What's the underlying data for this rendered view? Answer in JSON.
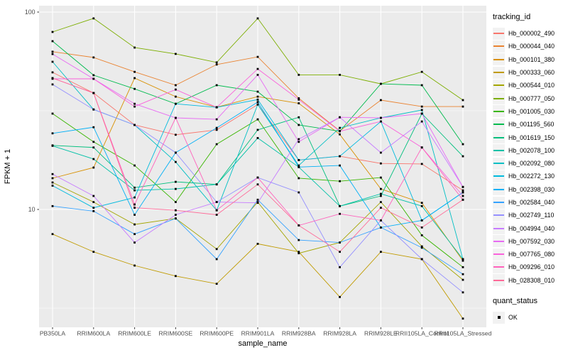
{
  "chart_data": {
    "type": "line",
    "title": "",
    "xlabel": "sample_name",
    "ylabel": "FPKM + 1",
    "y_scale": "log10",
    "y_ticks": [
      10,
      100
    ],
    "y_minor_breaks": [
      3.162,
      31.62
    ],
    "ylim": [
      2.53,
      107.7
    ],
    "grid": "ggplot-grey-panel-white-gridlines",
    "panel_color": "#EBEBEB",
    "point_marker": "small-black-square",
    "legend_position": "right",
    "categories": [
      "PB350LA",
      "RRIM600LA",
      "RRIM600LE",
      "RRIM600SE",
      "RRIM600PE",
      "RRIM901LA",
      "RRIM928BA",
      "RRIM928LA",
      "RRIM928LE",
      "RRII105LA_Control",
      "RRII105LA_Stressed"
    ],
    "legend_title": "tracking_id",
    "quant_legend_title": "quant_status",
    "quant_legend_items": [
      {
        "label": "OK"
      }
    ],
    "series": [
      {
        "name": "Hb_000002_490",
        "color": "#F8766D",
        "values": [
          49.5,
          38.9,
          26.8,
          23.9,
          25.3,
          34.0,
          17.8,
          18.6,
          17.1,
          17.0,
          12.5
        ]
      },
      {
        "name": "Hb_000044_040",
        "color": "#EA8331",
        "values": [
          63.0,
          58.9,
          49.8,
          42.6,
          54.2,
          59.3,
          36.6,
          25.0,
          35.8,
          33.2,
          33.2
        ]
      },
      {
        "name": "Hb_000101_380",
        "color": "#D89000",
        "values": [
          14.4,
          16.3,
          46.3,
          37.3,
          33.0,
          37.3,
          34.5,
          24.0,
          12.7,
          10.8,
          5.5
        ]
      },
      {
        "name": "Hb_000333_060",
        "color": "#C09B00",
        "values": [
          7.5,
          6.1,
          5.2,
          4.6,
          4.2,
          6.7,
          6.1,
          3.6,
          6.1,
          5.6,
          2.8
        ]
      },
      {
        "name": "Hb_000544_010",
        "color": "#A3A500",
        "values": [
          13.7,
          10.9,
          8.4,
          9.0,
          6.3,
          10.9,
          6.0,
          6.8,
          10.9,
          6.5,
          4.4
        ]
      },
      {
        "name": "Hb_000777_050",
        "color": "#7CAE00",
        "values": [
          79.3,
          92.9,
          66.1,
          61.4,
          55.6,
          92.9,
          48.1,
          48.1,
          43.3,
          49.8,
          35.8
        ]
      },
      {
        "name": "Hb_001005_030",
        "color": "#39B600",
        "values": [
          30.6,
          22.0,
          16.7,
          10.9,
          21.4,
          28.6,
          14.4,
          13.9,
          14.5,
          7.4,
          5.1
        ]
      },
      {
        "name": "Hb_001195_560",
        "color": "#00BB4E",
        "values": [
          71.2,
          47.9,
          40.8,
          34.3,
          42.6,
          39.5,
          26.8,
          24.9,
          43.3,
          42.6,
          21.4
        ]
      },
      {
        "name": "Hb_001619_150",
        "color": "#00BF7D",
        "values": [
          21.1,
          20.6,
          12.9,
          13.8,
          13.4,
          25.3,
          29.3,
          10.4,
          11.7,
          30.6,
          18.6
        ]
      },
      {
        "name": "Hb_002078_100",
        "color": "#00C1A7",
        "values": [
          21.0,
          18.0,
          12.5,
          12.7,
          13.4,
          23.0,
          16.4,
          10.4,
          12.0,
          10.4,
          5.6
        ]
      },
      {
        "name": "Hb_002092_080",
        "color": "#00BFC4",
        "values": [
          56.0,
          32.1,
          26.8,
          17.4,
          9.9,
          34.0,
          16.7,
          25.9,
          29.1,
          31.9,
          5.6
        ]
      },
      {
        "name": "Hb_002272_130",
        "color": "#00BADE",
        "values": [
          13.2,
          10.2,
          11.5,
          34.3,
          32.9,
          36.0,
          17.8,
          18.6,
          27.9,
          8.8,
          12.2
        ]
      },
      {
        "name": "Hb_002398_030",
        "color": "#00B0F6",
        "values": [
          24.3,
          26.1,
          9.4,
          19.4,
          25.9,
          35.0,
          16.4,
          16.7,
          8.1,
          8.8,
          12.2
        ]
      },
      {
        "name": "Hb_002584_040",
        "color": "#35A2FF",
        "values": [
          10.4,
          9.8,
          7.5,
          9.0,
          5.6,
          11.2,
          7.0,
          6.8,
          8.1,
          6.4,
          4.7
        ]
      },
      {
        "name": "Hb_002749_110",
        "color": "#9590FF",
        "values": [
          43.0,
          32.1,
          26.8,
          19.4,
          10.9,
          14.5,
          12.2,
          5.1,
          8.8,
          5.6,
          3.8
        ]
      },
      {
        "name": "Hb_004994_040",
        "color": "#C77CFF",
        "values": [
          15.1,
          11.7,
          6.8,
          9.4,
          10.9,
          10.8,
          22.7,
          29.3,
          19.4,
          27.9,
          13.0
        ]
      },
      {
        "name": "Hb_007592_030",
        "color": "#E76BF3",
        "values": [
          61.3,
          45.9,
          34.3,
          29.1,
          28.6,
          48.1,
          22.0,
          29.3,
          29.1,
          30.6,
          13.0
        ]
      },
      {
        "name": "Hb_007765_080",
        "color": "#FA62DB",
        "values": [
          45.9,
          45.9,
          33.2,
          40.5,
          32.9,
          51.5,
          36.0,
          24.9,
          27.9,
          20.6,
          11.7
        ]
      },
      {
        "name": "Hb_009296_010",
        "color": "#FF62BC",
        "values": [
          46.3,
          38.9,
          10.6,
          29.1,
          9.9,
          14.5,
          8.3,
          9.5,
          8.8,
          20.6,
          11.2
        ]
      },
      {
        "name": "Hb_028308_010",
        "color": "#FF6A98",
        "values": [
          46.3,
          38.9,
          10.2,
          9.9,
          9.4,
          13.4,
          8.3,
          6.1,
          10.2,
          8.1,
          11.2
        ]
      }
    ]
  }
}
